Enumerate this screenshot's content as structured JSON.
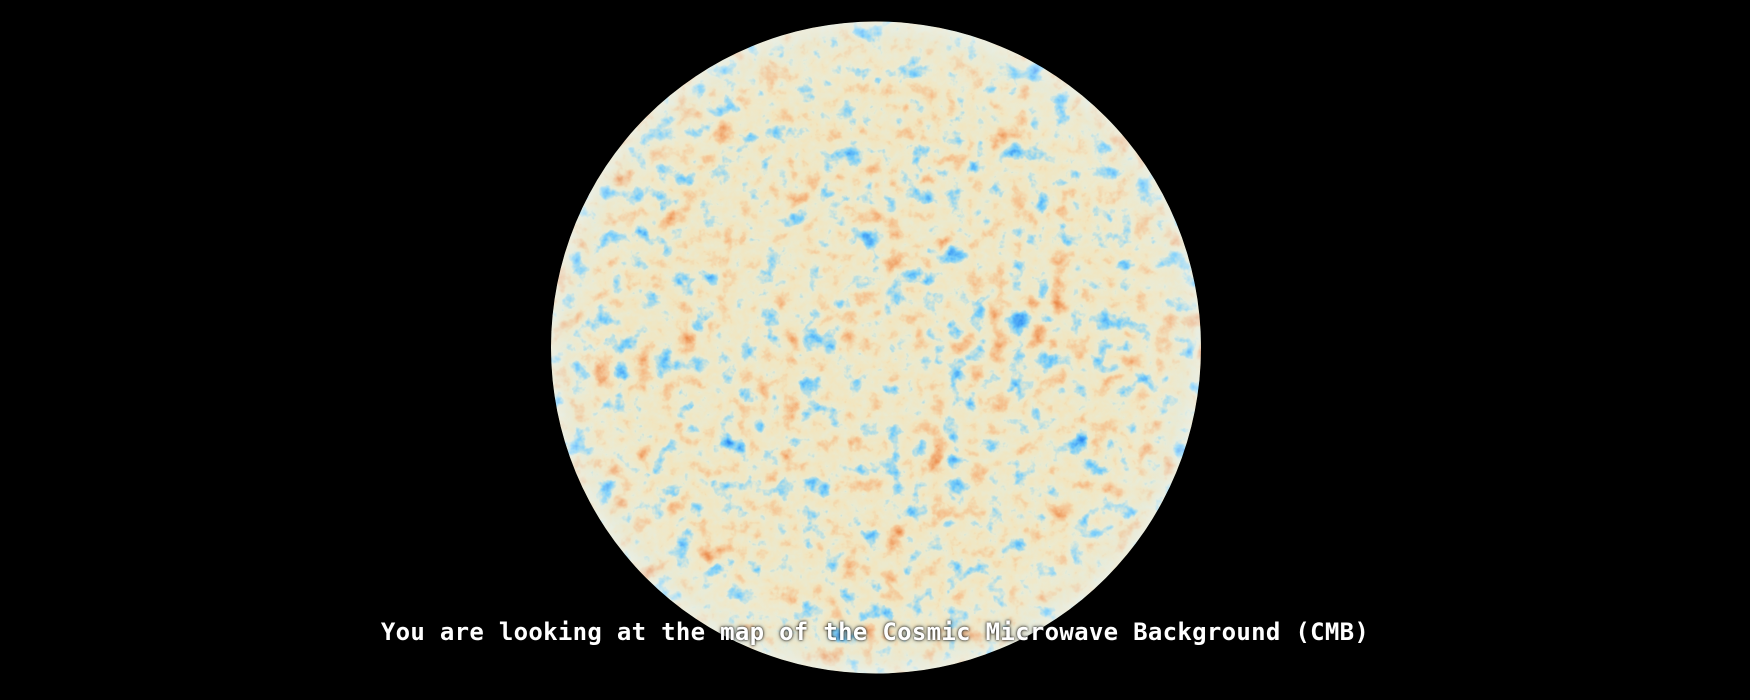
{
  "caption": {
    "text": "You are looking at the map of the Cosmic Microwave Background (CMB)"
  },
  "colors": {
    "background": "#000000",
    "caption_text": "#ffffff",
    "cmb_palette": [
      "#0b3fd1",
      "#2f7ff2",
      "#7fd0ff",
      "#f1e6c7",
      "#f1a35a",
      "#d56a20",
      "#8f2a08"
    ]
  }
}
